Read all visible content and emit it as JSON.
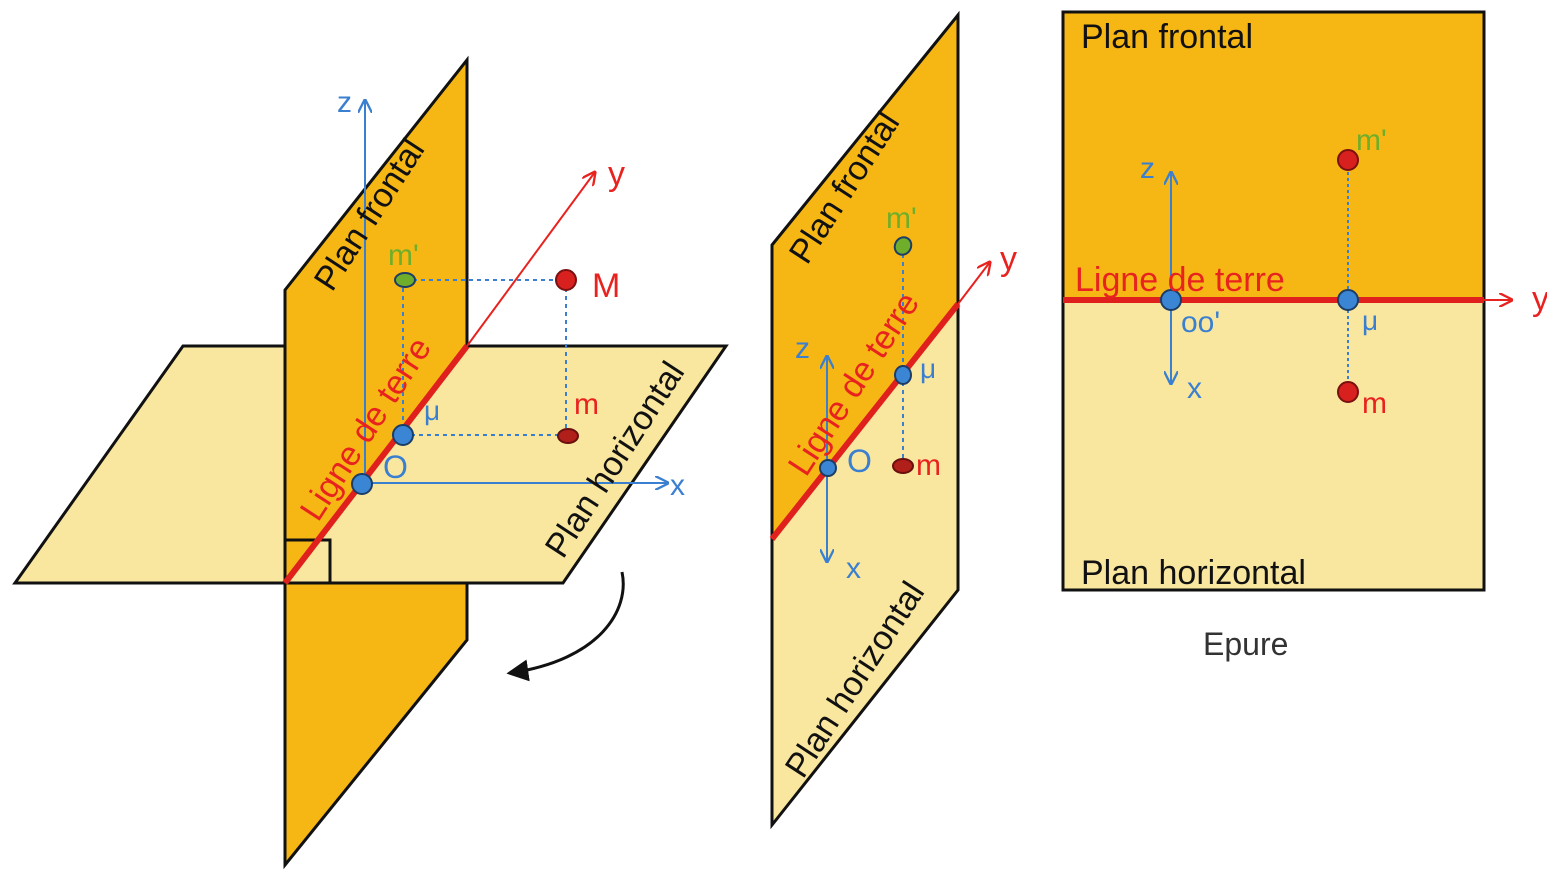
{
  "colors": {
    "frontal": "#f6b715",
    "horizontal": "#f9e79f",
    "outline": "#111111",
    "ground_line": "#e0201c",
    "axis": "#3a7fd0",
    "axis_y": "#e8231f",
    "point_red": "#d8211e",
    "point_blue": "#3a86d4",
    "point_green": "#6fae2a"
  },
  "left": {
    "plan_frontal": "Plan frontal",
    "plan_horizontal": "Plan horizontal",
    "ligne_de_terre": "Ligne de terre",
    "axis_z": "z",
    "axis_y": "y",
    "axis_x": "x",
    "point_M": "M",
    "point_m_prime": "m'",
    "point_m": "m",
    "point_mu": "μ",
    "point_O": "O"
  },
  "middle": {
    "plan_frontal": "Plan frontal",
    "plan_horizontal": "Plan horizontal",
    "ligne_de_terre": "Ligne de terre",
    "axis_z": "z",
    "axis_y": "y",
    "axis_x": "x",
    "point_m_prime": "m'",
    "point_m": "m",
    "point_mu": "μ",
    "point_O": "O"
  },
  "right": {
    "plan_frontal": "Plan frontal",
    "plan_horizontal": "Plan horizontal",
    "ligne_de_terre": "Ligne de terre",
    "axis_z": "z",
    "axis_y": "y",
    "axis_x": "x",
    "point_m_prime": "m'",
    "point_m": "m",
    "point_mu": "μ",
    "point_oo": "oo'",
    "caption": "Epure"
  }
}
